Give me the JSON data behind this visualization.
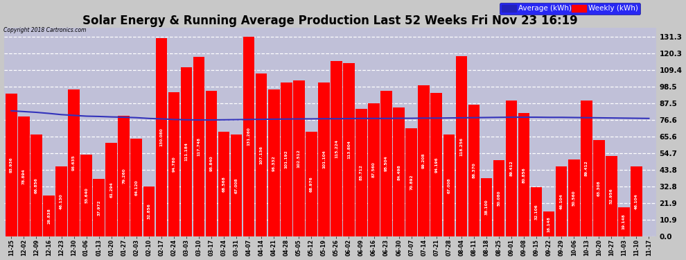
{
  "title": "Solar Energy & Running Average Production Last 52 Weeks Fri Nov 23 16:19",
  "copyright": "Copyright 2018 Cartronics.com",
  "legend_avg": "Average (kWh)",
  "legend_weekly": "Weekly (kWh)",
  "x_labels": [
    "11-25",
    "12-02",
    "12-09",
    "12-16",
    "12-23",
    "12-30",
    "01-06",
    "01-13",
    "01-20",
    "01-27",
    "02-03",
    "02-10",
    "02-17",
    "02-24",
    "03-03",
    "03-10",
    "03-17",
    "03-24",
    "03-31",
    "04-07",
    "04-14",
    "04-21",
    "04-28",
    "05-05",
    "05-12",
    "05-19",
    "05-26",
    "06-02",
    "06-09",
    "06-16",
    "06-23",
    "06-30",
    "07-07",
    "07-14",
    "07-21",
    "07-28",
    "08-04",
    "08-11",
    "08-18",
    "08-25",
    "09-01",
    "09-08",
    "09-15",
    "09-22",
    "09-29",
    "10-06",
    "10-13",
    "10-20",
    "10-27",
    "11-03",
    "11-10",
    "11-17"
  ],
  "weekly_values": [
    93.936,
    78.894,
    66.856,
    26.838,
    46.13,
    96.635,
    53.64,
    37.972,
    61.294,
    79.26,
    64.12,
    32.856,
    130.08,
    94.78,
    111.184,
    117.748,
    95.84,
    68.568,
    67.008,
    131.26,
    107.136,
    96.332,
    101.192,
    102.512,
    68.976,
    101.104,
    115.224,
    113.804,
    83.712,
    87.56,
    95.504,
    84.498,
    70.892,
    99.208,
    94.196,
    67.008,
    118.256,
    86.37,
    38.1,
    50.08,
    89.412,
    80.856,
    32.106,
    16.148,
    46.104,
    50.56,
    89.412,
    63.308,
    52.956,
    19.148,
    46.104,
    0.0
  ],
  "average_values": [
    82.5,
    82.0,
    81.5,
    80.8,
    80.0,
    79.5,
    79.0,
    78.8,
    78.5,
    78.3,
    78.0,
    77.5,
    77.2,
    76.8,
    76.6,
    76.5,
    76.5,
    76.6,
    76.7,
    76.8,
    76.9,
    77.0,
    77.1,
    77.2,
    77.2,
    77.3,
    77.3,
    77.4,
    77.5,
    77.5,
    77.5,
    77.6,
    77.6,
    77.7,
    77.7,
    77.8,
    77.9,
    78.0,
    78.1,
    78.2,
    78.3,
    78.3,
    78.3,
    78.2,
    78.2,
    78.1,
    78.0,
    77.9,
    77.8,
    77.7,
    77.6,
    77.5
  ],
  "yticks": [
    0.0,
    10.9,
    21.9,
    32.8,
    43.8,
    54.7,
    65.6,
    76.6,
    87.5,
    98.5,
    109.4,
    120.3,
    131.3
  ],
  "bar_color": "#ff0000",
  "avg_line_color": "#3333bb",
  "background_color": "#c8c8c8",
  "plot_bg_color": "#c0c0d8",
  "title_fontsize": 12,
  "ylim": [
    0.0,
    137.0
  ],
  "legend_avg_color": "#2222bb",
  "legend_weekly_color": "#ff0000"
}
